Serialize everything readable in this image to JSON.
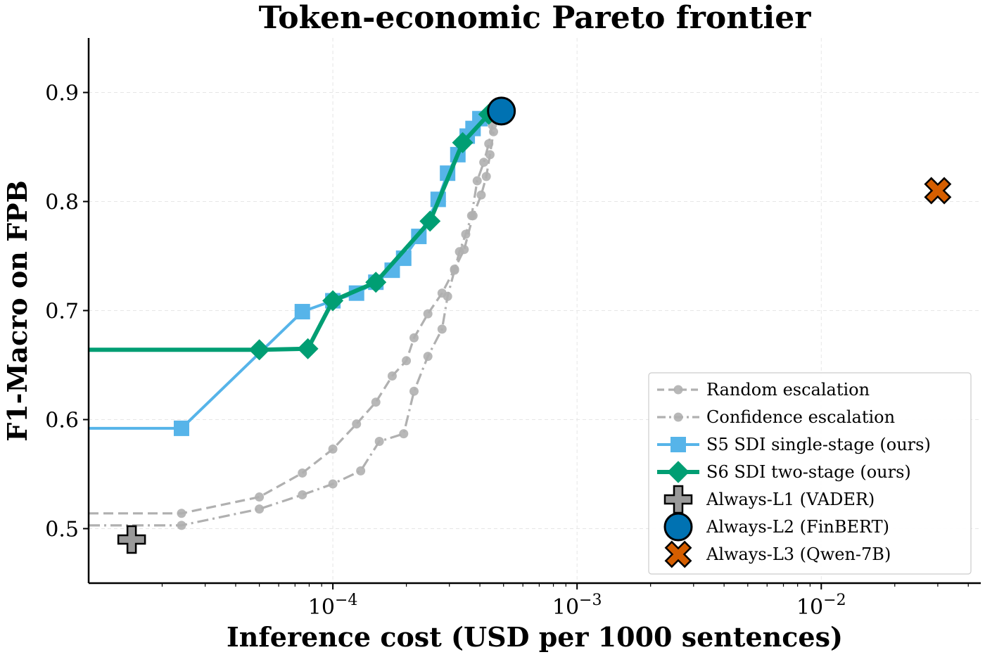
{
  "chart_data": {
    "type": "line",
    "title": "Token-economic Pareto frontier",
    "xlabel": "Inference cost  (USD per 1000 sentences)",
    "ylabel": "F1-Macro on FPB",
    "xscale": "log",
    "xlim": [
      1e-05,
      0.045
    ],
    "ylim": [
      0.45,
      0.95
    ],
    "xticks": [
      {
        "value": 0.0001,
        "base": "10",
        "exp": "−4"
      },
      {
        "value": 0.001,
        "base": "10",
        "exp": "−3"
      },
      {
        "value": 0.01,
        "base": "10",
        "exp": "−2"
      }
    ],
    "yticks": [
      {
        "value": 0.5,
        "label": "0.5"
      },
      {
        "value": 0.6,
        "label": "0.6"
      },
      {
        "value": 0.7,
        "label": "0.7"
      },
      {
        "value": 0.8,
        "label": "0.8"
      },
      {
        "value": 0.9,
        "label": "0.9"
      }
    ],
    "grid": true,
    "legend_position": "lower-right",
    "series": [
      {
        "name": "Random escalation",
        "color": "#b0b0b0",
        "line": "dashed",
        "marker": "circle",
        "x": [
          5e-06,
          2.4e-05,
          5e-05,
          7.5e-05,
          0.0001,
          0.000125,
          0.00015,
          0.000175,
          0.0002,
          0.000215,
          0.000245,
          0.00028,
          0.000315,
          0.000345,
          0.000375,
          0.000405,
          0.000425,
          0.00044,
          0.000455
        ],
        "y": [
          0.514,
          0.514,
          0.529,
          0.551,
          0.573,
          0.596,
          0.616,
          0.64,
          0.654,
          0.675,
          0.697,
          0.716,
          0.738,
          0.756,
          0.787,
          0.806,
          0.823,
          0.843,
          0.864
        ]
      },
      {
        "name": "Confidence escalation",
        "color": "#b0b0b0",
        "line": "dashdot",
        "marker": "circle",
        "x": [
          5e-06,
          2.4e-05,
          5e-05,
          7.5e-05,
          0.0001,
          0.00013,
          0.000155,
          0.000195,
          0.000215,
          0.000245,
          0.00028,
          0.000295,
          0.000315,
          0.00033,
          0.00035,
          0.00037,
          0.00039,
          0.000415,
          0.000435,
          0.00045
        ],
        "y": [
          0.503,
          0.503,
          0.518,
          0.531,
          0.541,
          0.553,
          0.58,
          0.587,
          0.626,
          0.658,
          0.683,
          0.713,
          0.737,
          0.754,
          0.77,
          0.787,
          0.819,
          0.836,
          0.853,
          0.87
        ]
      },
      {
        "name": "S5  SDI single-stage  (ours)",
        "color": "#56b4e9",
        "line": "solid",
        "marker": "square",
        "x": [
          5e-06,
          2.4e-05,
          7.5e-05,
          0.0001,
          0.000125,
          0.00015,
          0.000175,
          0.000195,
          0.000225,
          0.00027,
          0.000295,
          0.000325,
          0.000355,
          0.000375,
          0.0004
        ],
        "y": [
          0.592,
          0.592,
          0.699,
          0.709,
          0.716,
          0.726,
          0.737,
          0.748,
          0.768,
          0.802,
          0.826,
          0.843,
          0.86,
          0.867,
          0.876
        ]
      },
      {
        "name": "S6  SDI two-stage  (ours)",
        "color": "#009e73",
        "line": "solid",
        "marker": "diamond",
        "x": [
          5e-06,
          5e-05,
          7.9e-05,
          0.0001,
          0.00015,
          0.00025,
          0.00034,
          0.000435
        ],
        "y": [
          0.664,
          0.664,
          0.665,
          0.709,
          0.726,
          0.782,
          0.854,
          0.88
        ]
      }
    ],
    "points": [
      {
        "name": "Always-L1  (VADER)",
        "x": 1.5e-05,
        "y": 0.49,
        "marker": "plus",
        "color": "#999999"
      },
      {
        "name": "Always-L2  (FinBERT)",
        "x": 0.00049,
        "y": 0.883,
        "marker": "circle",
        "color": "#0072b2"
      },
      {
        "name": "Always-L3  (Qwen-7B)",
        "x": 0.03,
        "y": 0.81,
        "marker": "x",
        "color": "#d55e00"
      }
    ]
  }
}
